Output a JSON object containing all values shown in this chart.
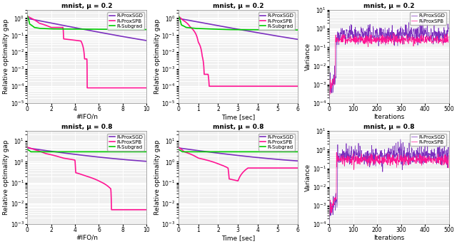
{
  "titles_top": [
    "mnist, μ = 0.2",
    "mnist, μ = 0.2",
    "mnist, μ = 0.2"
  ],
  "titles_bot": [
    "mnist, μ = 0.8",
    "mnist, μ = 0.8",
    "mnist, μ = 0.8"
  ],
  "xlabels": [
    "#IFO/n",
    "Time [sec]",
    "Iterations"
  ],
  "ylabels_left": [
    "Relative optimality gap",
    "Relative optimality gap",
    "Variance"
  ],
  "colors": {
    "R-ProxSGD": "#7B2FBE",
    "R-ProxSPB": "#FF1493",
    "R-Subgrad": "#00CC00"
  },
  "bg_color": "#F0F0F0",
  "grid_color": "#FFFFFF"
}
